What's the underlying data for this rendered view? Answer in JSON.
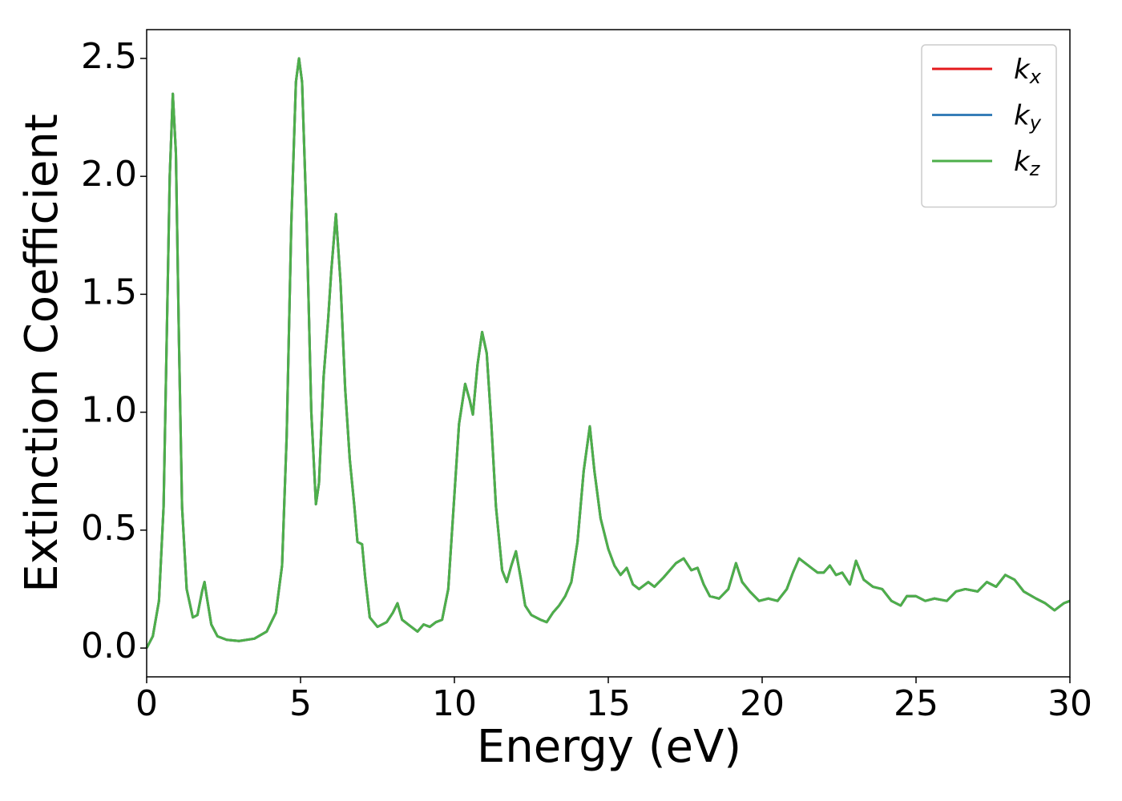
{
  "chart_data": {
    "type": "line",
    "xlabel": "Energy (eV)",
    "ylabel": "Extinction Coefficient",
    "x": [
      0,
      0.2,
      0.4,
      0.55,
      0.65,
      0.75,
      0.85,
      0.95,
      1.05,
      1.15,
      1.3,
      1.5,
      1.65,
      1.8,
      1.88,
      1.95,
      2.1,
      2.3,
      2.6,
      3.0,
      3.5,
      3.9,
      4.2,
      4.4,
      4.55,
      4.7,
      4.85,
      4.95,
      5.05,
      5.2,
      5.35,
      5.5,
      5.6,
      5.75,
      5.9,
      6.0,
      6.15,
      6.3,
      6.45,
      6.6,
      6.75,
      6.85,
      7.0,
      7.1,
      7.25,
      7.5,
      7.8,
      8.0,
      8.15,
      8.3,
      8.5,
      8.8,
      9.0,
      9.2,
      9.4,
      9.6,
      9.8,
      10.0,
      10.15,
      10.35,
      10.5,
      10.6,
      10.75,
      10.9,
      11.05,
      11.2,
      11.35,
      11.55,
      11.7,
      11.85,
      12.0,
      12.15,
      12.3,
      12.5,
      12.8,
      13.0,
      13.2,
      13.4,
      13.6,
      13.8,
      14.0,
      14.2,
      14.4,
      14.55,
      14.75,
      15.0,
      15.2,
      15.4,
      15.6,
      15.8,
      16.0,
      16.3,
      16.5,
      16.8,
      17.2,
      17.45,
      17.7,
      17.9,
      18.1,
      18.3,
      18.6,
      18.9,
      19.15,
      19.35,
      19.6,
      19.9,
      20.2,
      20.5,
      20.8,
      21.0,
      21.2,
      21.5,
      21.8,
      22.0,
      22.2,
      22.4,
      22.6,
      22.85,
      23.05,
      23.3,
      23.6,
      23.9,
      24.2,
      24.5,
      24.7,
      25.0,
      25.3,
      25.6,
      26.0,
      26.3,
      26.6,
      27.0,
      27.3,
      27.6,
      27.9,
      28.2,
      28.5,
      28.9,
      29.2,
      29.5,
      29.8,
      30.0
    ],
    "series": [
      {
        "name": "kx",
        "color": "#e41a1c",
        "values": [
          0.0,
          0.05,
          0.2,
          0.6,
          1.3,
          2.0,
          2.35,
          2.1,
          1.3,
          0.6,
          0.25,
          0.13,
          0.14,
          0.24,
          0.28,
          0.22,
          0.1,
          0.05,
          0.035,
          0.03,
          0.04,
          0.07,
          0.15,
          0.35,
          0.9,
          1.8,
          2.4,
          2.5,
          2.4,
          1.8,
          1.0,
          0.61,
          0.7,
          1.15,
          1.4,
          1.6,
          1.84,
          1.55,
          1.1,
          0.8,
          0.6,
          0.45,
          0.44,
          0.3,
          0.13,
          0.09,
          0.11,
          0.15,
          0.19,
          0.12,
          0.1,
          0.07,
          0.1,
          0.09,
          0.11,
          0.12,
          0.25,
          0.65,
          0.95,
          1.12,
          1.05,
          0.99,
          1.2,
          1.34,
          1.25,
          0.95,
          0.6,
          0.33,
          0.28,
          0.35,
          0.41,
          0.3,
          0.18,
          0.14,
          0.12,
          0.11,
          0.15,
          0.18,
          0.22,
          0.28,
          0.45,
          0.75,
          0.94,
          0.75,
          0.55,
          0.42,
          0.35,
          0.31,
          0.34,
          0.27,
          0.25,
          0.28,
          0.26,
          0.3,
          0.36,
          0.38,
          0.33,
          0.34,
          0.27,
          0.22,
          0.21,
          0.25,
          0.36,
          0.28,
          0.24,
          0.2,
          0.21,
          0.2,
          0.25,
          0.32,
          0.38,
          0.35,
          0.32,
          0.32,
          0.35,
          0.31,
          0.32,
          0.27,
          0.37,
          0.29,
          0.26,
          0.25,
          0.2,
          0.18,
          0.22,
          0.22,
          0.2,
          0.21,
          0.2,
          0.24,
          0.25,
          0.24,
          0.28,
          0.26,
          0.31,
          0.29,
          0.24,
          0.21,
          0.19,
          0.16,
          0.19,
          0.2
        ]
      },
      {
        "name": "ky",
        "color": "#377eb8",
        "values": [
          0.0,
          0.05,
          0.2,
          0.6,
          1.3,
          2.0,
          2.35,
          2.1,
          1.3,
          0.6,
          0.25,
          0.13,
          0.14,
          0.24,
          0.28,
          0.22,
          0.1,
          0.05,
          0.035,
          0.03,
          0.04,
          0.07,
          0.15,
          0.35,
          0.9,
          1.8,
          2.4,
          2.5,
          2.4,
          1.8,
          1.0,
          0.61,
          0.7,
          1.15,
          1.4,
          1.6,
          1.84,
          1.55,
          1.1,
          0.8,
          0.6,
          0.45,
          0.44,
          0.3,
          0.13,
          0.09,
          0.11,
          0.15,
          0.19,
          0.12,
          0.1,
          0.07,
          0.1,
          0.09,
          0.11,
          0.12,
          0.25,
          0.65,
          0.95,
          1.12,
          1.05,
          0.99,
          1.2,
          1.34,
          1.25,
          0.95,
          0.6,
          0.33,
          0.28,
          0.35,
          0.41,
          0.3,
          0.18,
          0.14,
          0.12,
          0.11,
          0.15,
          0.18,
          0.22,
          0.28,
          0.45,
          0.75,
          0.94,
          0.75,
          0.55,
          0.42,
          0.35,
          0.31,
          0.34,
          0.27,
          0.25,
          0.28,
          0.26,
          0.3,
          0.36,
          0.38,
          0.33,
          0.34,
          0.27,
          0.22,
          0.21,
          0.25,
          0.36,
          0.28,
          0.24,
          0.2,
          0.21,
          0.2,
          0.25,
          0.32,
          0.38,
          0.35,
          0.32,
          0.32,
          0.35,
          0.31,
          0.32,
          0.27,
          0.37,
          0.29,
          0.26,
          0.25,
          0.2,
          0.18,
          0.22,
          0.22,
          0.2,
          0.21,
          0.2,
          0.24,
          0.25,
          0.24,
          0.28,
          0.26,
          0.31,
          0.29,
          0.24,
          0.21,
          0.19,
          0.16,
          0.19,
          0.2
        ]
      },
      {
        "name": "kz",
        "color": "#4daf4a",
        "values": [
          0.0,
          0.05,
          0.2,
          0.6,
          1.3,
          2.0,
          2.35,
          2.1,
          1.3,
          0.6,
          0.25,
          0.13,
          0.14,
          0.24,
          0.28,
          0.22,
          0.1,
          0.05,
          0.035,
          0.03,
          0.04,
          0.07,
          0.15,
          0.35,
          0.9,
          1.8,
          2.4,
          2.5,
          2.4,
          1.8,
          1.0,
          0.61,
          0.7,
          1.15,
          1.4,
          1.6,
          1.84,
          1.55,
          1.1,
          0.8,
          0.6,
          0.45,
          0.44,
          0.3,
          0.13,
          0.09,
          0.11,
          0.15,
          0.19,
          0.12,
          0.1,
          0.07,
          0.1,
          0.09,
          0.11,
          0.12,
          0.25,
          0.65,
          0.95,
          1.12,
          1.05,
          0.99,
          1.2,
          1.34,
          1.25,
          0.95,
          0.6,
          0.33,
          0.28,
          0.35,
          0.41,
          0.3,
          0.18,
          0.14,
          0.12,
          0.11,
          0.15,
          0.18,
          0.22,
          0.28,
          0.45,
          0.75,
          0.94,
          0.75,
          0.55,
          0.42,
          0.35,
          0.31,
          0.34,
          0.27,
          0.25,
          0.28,
          0.26,
          0.3,
          0.36,
          0.38,
          0.33,
          0.34,
          0.27,
          0.22,
          0.21,
          0.25,
          0.36,
          0.28,
          0.24,
          0.2,
          0.21,
          0.2,
          0.25,
          0.32,
          0.38,
          0.35,
          0.32,
          0.32,
          0.35,
          0.31,
          0.32,
          0.27,
          0.37,
          0.29,
          0.26,
          0.25,
          0.2,
          0.18,
          0.22,
          0.22,
          0.2,
          0.21,
          0.2,
          0.24,
          0.25,
          0.24,
          0.28,
          0.26,
          0.31,
          0.29,
          0.24,
          0.21,
          0.19,
          0.16,
          0.19,
          0.2
        ]
      }
    ],
    "xlim": [
      0,
      30
    ],
    "xticks": [
      0,
      5,
      10,
      15,
      20,
      25,
      30
    ],
    "ylim": [
      -0.122,
      2.622
    ],
    "yticks": [
      {
        "value": 0,
        "label": "0.0"
      },
      0.5,
      {
        "value": 1,
        "label": "1.0"
      },
      1.5,
      {
        "value": 2,
        "label": "2.0"
      },
      2.5
    ],
    "grid": false,
    "legend": "upper right"
  }
}
